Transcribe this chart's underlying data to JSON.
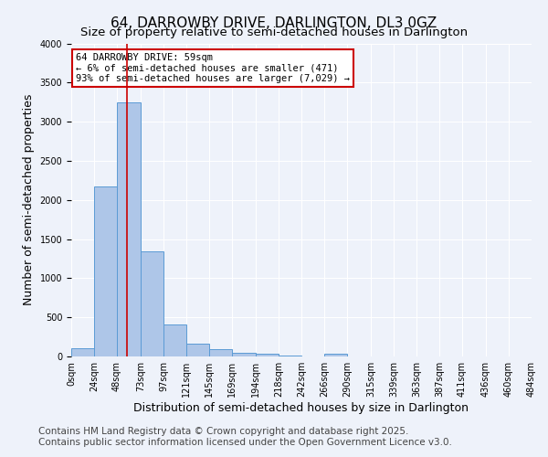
{
  "title": "64, DARROWBY DRIVE, DARLINGTON, DL3 0GZ",
  "subtitle": "Size of property relative to semi-detached houses in Darlington",
  "xlabel": "Distribution of semi-detached houses by size in Darlington",
  "ylabel": "Number of semi-detached properties",
  "footnote1": "Contains HM Land Registry data © Crown copyright and database right 2025.",
  "footnote2": "Contains public sector information licensed under the Open Government Licence v3.0.",
  "bin_edges": [
    0,
    24,
    48,
    73,
    97,
    121,
    145,
    169,
    194,
    218,
    242,
    266,
    290,
    315,
    339,
    363,
    387,
    411,
    436,
    460,
    484
  ],
  "bin_labels": [
    "0sqm",
    "24sqm",
    "48sqm",
    "73sqm",
    "97sqm",
    "121sqm",
    "145sqm",
    "169sqm",
    "194sqm",
    "218sqm",
    "242sqm",
    "266sqm",
    "290sqm",
    "315sqm",
    "339sqm",
    "363sqm",
    "387sqm",
    "411sqm",
    "436sqm",
    "460sqm",
    "484sqm"
  ],
  "bar_values": [
    110,
    2170,
    3250,
    1340,
    410,
    165,
    90,
    50,
    35,
    10,
    5,
    30,
    0,
    0,
    0,
    0,
    0,
    0,
    0,
    0
  ],
  "bar_color": "#aec6e8",
  "bar_edge_color": "#5b9bd5",
  "property_line_x": 59,
  "property_line_color": "#cc0000",
  "annotation_title": "64 DARROWBY DRIVE: 59sqm",
  "annotation_line1": "← 6% of semi-detached houses are smaller (471)",
  "annotation_line2": "93% of semi-detached houses are larger (7,029) →",
  "annotation_box_color": "#cc0000",
  "ylim": [
    0,
    4000
  ],
  "yticks": [
    0,
    500,
    1000,
    1500,
    2000,
    2500,
    3000,
    3500,
    4000
  ],
  "background_color": "#eef2fa",
  "grid_color": "#ffffff",
  "title_fontsize": 11,
  "subtitle_fontsize": 9.5,
  "axis_label_fontsize": 9,
  "tick_fontsize": 7,
  "footnote_fontsize": 7.5
}
